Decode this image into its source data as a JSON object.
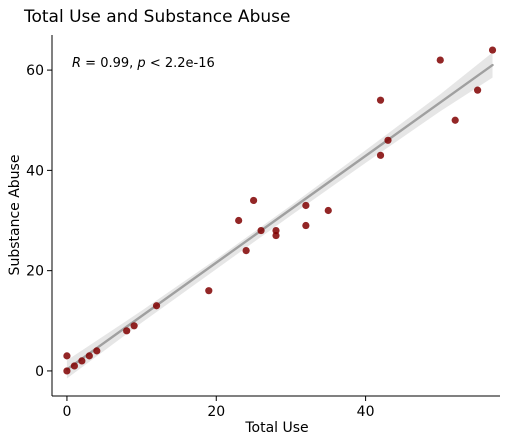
{
  "chart_data": {
    "type": "scatter",
    "title": "Total Use and Substance Abuse",
    "xlabel": "Total Use",
    "ylabel": "Substance Abuse",
    "xlim": [
      -2.0,
      58.0
    ],
    "ylim": [
      -5.0,
      67.0
    ],
    "x_ticks": [
      0,
      20,
      40
    ],
    "y_ticks": [
      0,
      20,
      40,
      60
    ],
    "x_tick_labels": [
      "0",
      "20",
      "40"
    ],
    "y_tick_labels": [
      "0",
      "20",
      "40",
      "60"
    ],
    "grid": false,
    "annotation": {
      "r_symbol": "R",
      "r_text": " = 0.99, ",
      "p_symbol": "p",
      "p_text": " < 2.2e-16"
    },
    "points": [
      {
        "x": 0,
        "y": 0
      },
      {
        "x": 0,
        "y": 3
      },
      {
        "x": 1,
        "y": 1
      },
      {
        "x": 2,
        "y": 2
      },
      {
        "x": 3,
        "y": 3
      },
      {
        "x": 4,
        "y": 4
      },
      {
        "x": 8,
        "y": 8
      },
      {
        "x": 9,
        "y": 9
      },
      {
        "x": 12,
        "y": 13
      },
      {
        "x": 19,
        "y": 16
      },
      {
        "x": 23,
        "y": 30
      },
      {
        "x": 24,
        "y": 24
      },
      {
        "x": 25,
        "y": 34
      },
      {
        "x": 26,
        "y": 28
      },
      {
        "x": 28,
        "y": 27
      },
      {
        "x": 28,
        "y": 28
      },
      {
        "x": 32,
        "y": 29
      },
      {
        "x": 32,
        "y": 33
      },
      {
        "x": 35,
        "y": 32
      },
      {
        "x": 42,
        "y": 43
      },
      {
        "x": 42,
        "y": 54
      },
      {
        "x": 43,
        "y": 46
      },
      {
        "x": 50,
        "y": 62
      },
      {
        "x": 52,
        "y": 50
      },
      {
        "x": 55,
        "y": 56
      },
      {
        "x": 57,
        "y": 64
      }
    ],
    "fit_line": {
      "x": [
        0,
        57
      ],
      "y": [
        0.3,
        61.0
      ]
    },
    "confidence_band": {
      "x": [
        0,
        10,
        20,
        30,
        40,
        50,
        57
      ],
      "lower": [
        -1.5,
        9.6,
        20.3,
        31.0,
        41.5,
        51.8,
        58.5
      ],
      "upper": [
        2.1,
        12.0,
        22.3,
        33.0,
        44.0,
        55.2,
        63.5
      ]
    },
    "colors": {
      "points": "#800000",
      "fit_line": "#a0a0a0",
      "band": "#e6e6e6"
    }
  }
}
